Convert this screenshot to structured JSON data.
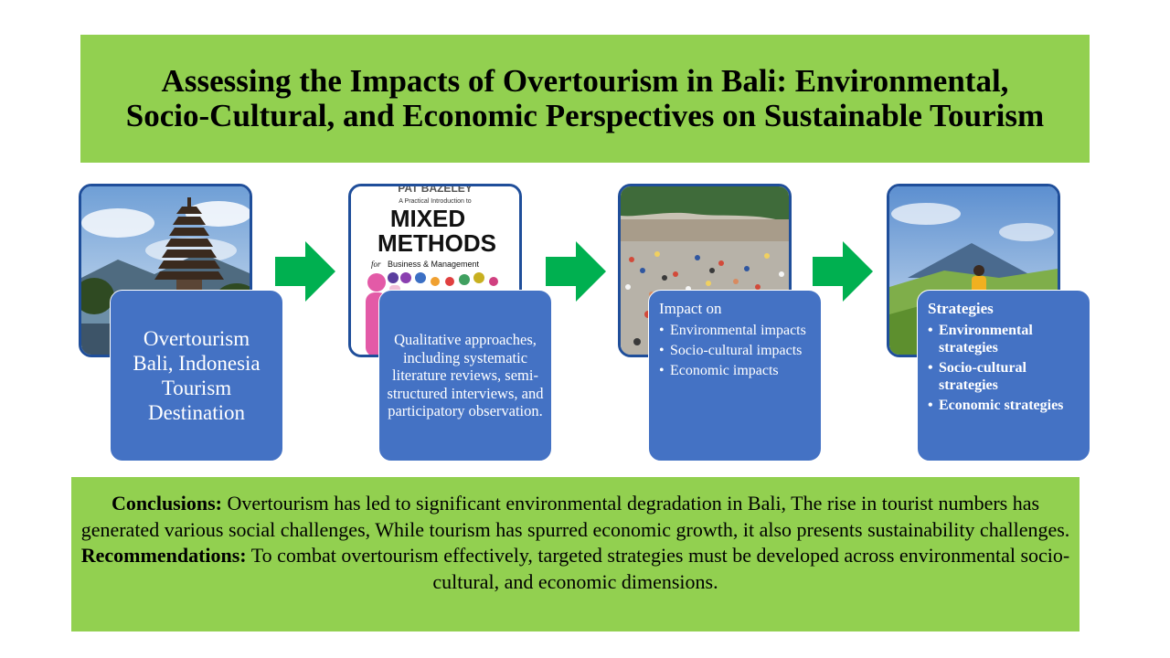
{
  "title": {
    "line1": "Assessing the Impacts of Overtourism in Bali: Environmental,",
    "line2": "Socio-Cultural, and Economic Perspectives on Sustainable Tourism"
  },
  "stages": {
    "s1": {
      "lines": [
        "Overtourism",
        "Bali, Indonesia",
        "Tourism",
        "Destination"
      ]
    },
    "s2": {
      "book_author": "PAT BAZELEY",
      "book_subtitle": "A Practical Introduction to",
      "book_title_1": "MIXED",
      "book_title_2": "METHODS",
      "book_for": "for",
      "book_tagline": "Business & Management",
      "text": "Qualitative approaches, including systematic literature reviews, semi-structured interviews, and participatory observation."
    },
    "s3": {
      "heading": "Impact on",
      "items": [
        "Environmental impacts",
        "Socio-cultural impacts",
        "Economic impacts"
      ]
    },
    "s4": {
      "heading": "Strategies",
      "items": [
        "Environmental strategies",
        "Socio-cultural strategies",
        "Economic strategies"
      ]
    }
  },
  "bottom": {
    "conclusions_label": "Conclusions:",
    "conclusions_text": " Overtourism has led to significant environmental degradation in Bali, The rise in tourist numbers has generated various social challenges, While tourism has spurred economic growth, it also presents sustainability challenges.",
    "recommendations_label": "Recommendations:",
    "recommendations_text": " To combat overtourism effectively, targeted strategies must be developed across environmental socio-cultural, and economic dimensions."
  },
  "colors": {
    "green_box": "#92d050",
    "card_blue": "#4472c4",
    "photo_border": "#1f4e9a",
    "arrow_green": "#00b050"
  },
  "icons": [
    "right-arrow-icon"
  ]
}
